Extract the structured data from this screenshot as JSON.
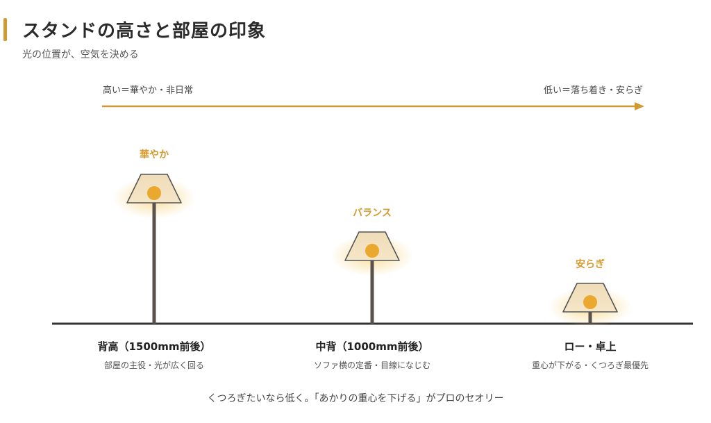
{
  "header": {
    "title": "スタンドの高さと部屋の印象",
    "subtitle": "光の位置が、空気を決める"
  },
  "scale": {
    "left_label": "高い＝華やか・非日常",
    "right_label": "低い＝落ち着き・安らぎ"
  },
  "lamps": [
    {
      "mood": "華やか",
      "name": "背高（1500mm前後）",
      "desc": "部屋の主役・光が広く回る"
    },
    {
      "mood": "バランス",
      "name": "中背（1000mm前後）",
      "desc": "ソファ横の定番・目線になじむ"
    },
    {
      "mood": "安らぎ",
      "name": "ロー・卓上",
      "desc": "重心が下がる・くつろぎ最優先"
    }
  ],
  "footer": {
    "text": "くつろぎたいなら低く。「あかりの重心を下げる」がプロのセオリー"
  },
  "colors": {
    "accent": "#d09a32",
    "mood_text": "#d59a2e",
    "shade_fill": "#f1ddb5",
    "bulb": "#eaa92e",
    "pole": "#5a534d",
    "floor": "#333333"
  }
}
